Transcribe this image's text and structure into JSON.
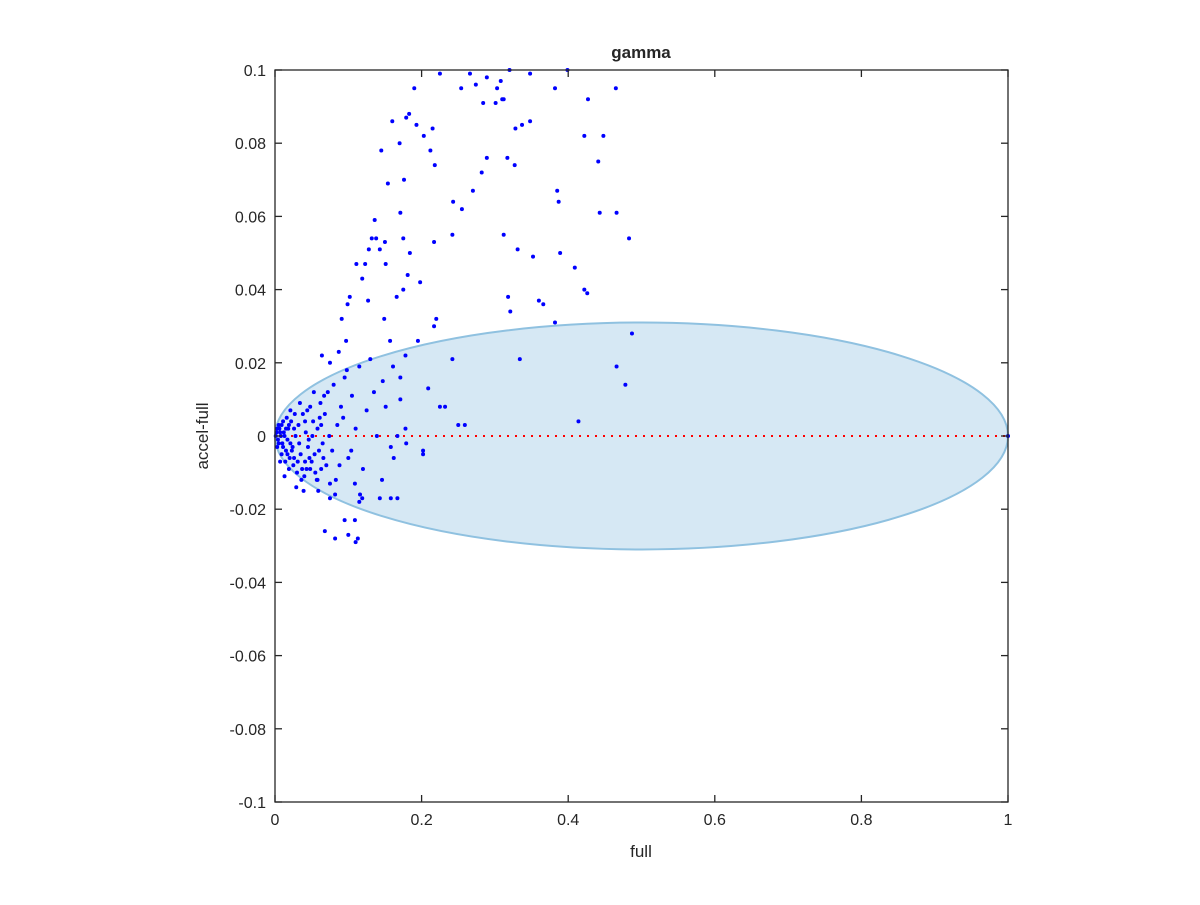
{
  "chart_data": {
    "type": "scatter",
    "title": "gamma",
    "xlabel": "full",
    "ylabel": "accel-full",
    "xlim": [
      0,
      1
    ],
    "ylim": [
      -0.1,
      0.1
    ],
    "xticks": [
      0,
      0.2,
      0.4,
      0.6,
      0.8,
      1
    ],
    "xtick_labels": [
      "0",
      "0.2",
      "0.4",
      "0.6",
      "0.8",
      "1"
    ],
    "yticks": [
      -0.1,
      -0.08,
      -0.06,
      -0.04,
      -0.02,
      0,
      0.02,
      0.04,
      0.06,
      0.08,
      0.1
    ],
    "ytick_labels": [
      "-0.1",
      "-0.08",
      "-0.06",
      "-0.04",
      "-0.02",
      "0",
      "0.02",
      "0.04",
      "0.06",
      "0.08",
      "0.1"
    ],
    "grid": false,
    "colors": {
      "points": "#0000ff",
      "zero_line": "#ff0000",
      "ellipse_fill": "#d6e8f4",
      "ellipse_edge": "#8fc1e0",
      "axis": "#262626"
    },
    "ellipse": {
      "center": [
        0.5,
        0
      ],
      "semi_axes": [
        0.5,
        0.031
      ]
    },
    "zero_line": {
      "y": 0,
      "x_range": [
        0,
        1
      ],
      "style": "dotted"
    },
    "points": [
      [
        0.225,
        0.099
      ],
      [
        0.266,
        0.099
      ],
      [
        0.289,
        0.098
      ],
      [
        0.32,
        0.1
      ],
      [
        0.348,
        0.099
      ],
      [
        0.399,
        0.1
      ],
      [
        0.31,
        0.092
      ],
      [
        0.254,
        0.095
      ],
      [
        0.274,
        0.096
      ],
      [
        0.308,
        0.097
      ],
      [
        0.303,
        0.095
      ],
      [
        0.284,
        0.091
      ],
      [
        0.301,
        0.091
      ],
      [
        0.312,
        0.092
      ],
      [
        0.382,
        0.095
      ],
      [
        0.19,
        0.095
      ],
      [
        0.427,
        0.092
      ],
      [
        0.465,
        0.095
      ],
      [
        0.183,
        0.088
      ],
      [
        0.16,
        0.086
      ],
      [
        0.145,
        0.078
      ],
      [
        0.212,
        0.078
      ],
      [
        0.203,
        0.082
      ],
      [
        0.215,
        0.084
      ],
      [
        0.154,
        0.069
      ],
      [
        0.17,
        0.08
      ],
      [
        0.179,
        0.087
      ],
      [
        0.193,
        0.085
      ],
      [
        0.218,
        0.074
      ],
      [
        0.328,
        0.084
      ],
      [
        0.337,
        0.085
      ],
      [
        0.348,
        0.086
      ],
      [
        0.289,
        0.076
      ],
      [
        0.282,
        0.072
      ],
      [
        0.317,
        0.076
      ],
      [
        0.327,
        0.074
      ],
      [
        0.176,
        0.07
      ],
      [
        0.422,
        0.082
      ],
      [
        0.448,
        0.082
      ],
      [
        0.441,
        0.075
      ],
      [
        0.466,
        0.061
      ],
      [
        0.443,
        0.061
      ],
      [
        0.483,
        0.054
      ],
      [
        0.385,
        0.067
      ],
      [
        0.387,
        0.064
      ],
      [
        0.389,
        0.05
      ],
      [
        0.409,
        0.046
      ],
      [
        0.422,
        0.04
      ],
      [
        0.426,
        0.039
      ],
      [
        0.312,
        0.055
      ],
      [
        0.352,
        0.049
      ],
      [
        0.331,
        0.051
      ],
      [
        0.138,
        0.054
      ],
      [
        0.128,
        0.051
      ],
      [
        0.15,
        0.053
      ],
      [
        0.171,
        0.061
      ],
      [
        0.175,
        0.054
      ],
      [
        0.243,
        0.064
      ],
      [
        0.255,
        0.062
      ],
      [
        0.27,
        0.067
      ],
      [
        0.242,
        0.055
      ],
      [
        0.217,
        0.053
      ],
      [
        0.184,
        0.05
      ],
      [
        0.111,
        0.047
      ],
      [
        0.123,
        0.047
      ],
      [
        0.132,
        0.054
      ],
      [
        0.136,
        0.059
      ],
      [
        0.143,
        0.051
      ],
      [
        0.151,
        0.047
      ],
      [
        0.166,
        0.038
      ],
      [
        0.181,
        0.044
      ],
      [
        0.198,
        0.042
      ],
      [
        0.22,
        0.032
      ],
      [
        0.217,
        0.03
      ],
      [
        0.195,
        0.026
      ],
      [
        0.175,
        0.04
      ],
      [
        0.318,
        0.038
      ],
      [
        0.36,
        0.037
      ],
      [
        0.366,
        0.036
      ],
      [
        0.382,
        0.031
      ],
      [
        0.334,
        0.021
      ],
      [
        0.209,
        0.013
      ],
      [
        0.478,
        0.014
      ],
      [
        0.487,
        0.028
      ],
      [
        0.466,
        0.019
      ],
      [
        0.414,
        0.004
      ],
      [
        0.321,
        0.034
      ],
      [
        0.102,
        0.038
      ],
      [
        0.091,
        0.032
      ],
      [
        0.099,
        0.036
      ],
      [
        0.097,
        0.026
      ],
      [
        0.087,
        0.023
      ],
      [
        0.075,
        0.02
      ],
      [
        0.064,
        0.022
      ],
      [
        0.119,
        0.043
      ],
      [
        0.127,
        0.037
      ],
      [
        0.149,
        0.032
      ],
      [
        0.157,
        0.026
      ],
      [
        0.178,
        0.022
      ],
      [
        0.161,
        0.019
      ],
      [
        0.171,
        0.016
      ],
      [
        0.147,
        0.015
      ],
      [
        0.135,
        0.012
      ],
      [
        0.151,
        0.008
      ],
      [
        0.171,
        0.01
      ],
      [
        0.178,
        0.002
      ],
      [
        0.242,
        0.021
      ],
      [
        0.225,
        0.008
      ],
      [
        0.232,
        0.008
      ],
      [
        0.25,
        0.003
      ],
      [
        0.259,
        0.003
      ],
      [
        0.202,
        -0.005
      ],
      [
        0.158,
        -0.003
      ],
      [
        0.202,
        -0.004
      ],
      [
        0.167,
        0.0
      ],
      [
        0.139,
        0.0
      ],
      [
        0.179,
        -0.002
      ],
      [
        0.162,
        -0.006
      ],
      [
        0.104,
        -0.004
      ],
      [
        0.146,
        -0.012
      ],
      [
        0.109,
        -0.013
      ],
      [
        0.167,
        -0.017
      ],
      [
        0.116,
        -0.016
      ],
      [
        0.075,
        -0.013
      ],
      [
        0.063,
        -0.009
      ],
      [
        0.075,
        -0.017
      ],
      [
        0.095,
        -0.023
      ],
      [
        0.109,
        -0.023
      ],
      [
        0.068,
        -0.026
      ],
      [
        0.082,
        -0.028
      ],
      [
        0.1,
        -0.027
      ],
      [
        0.119,
        -0.017
      ],
      [
        0.058,
        -0.012
      ],
      [
        0.048,
        -0.009
      ],
      [
        0.041,
        -0.007
      ],
      [
        0.11,
        -0.029
      ],
      [
        0.113,
        -0.028
      ],
      [
        0.115,
        -0.018
      ],
      [
        0.143,
        -0.017
      ],
      [
        0.158,
        -0.017
      ],
      [
        0.082,
        -0.016
      ],
      [
        1.0,
        0.0
      ],
      [
        0.002,
        0.001
      ],
      [
        0.004,
        -0.001
      ],
      [
        0.006,
        0.002
      ],
      [
        0.008,
        0.0
      ],
      [
        0.01,
        -0.002
      ],
      [
        0.012,
        0.001
      ],
      [
        0.005,
        0.003
      ],
      [
        0.003,
        -0.003
      ],
      [
        0.015,
        -0.004
      ],
      [
        0.018,
        0.002
      ],
      [
        0.02,
        -0.006
      ],
      [
        0.022,
        0.004
      ],
      [
        0.025,
        -0.008
      ],
      [
        0.028,
        0.0
      ],
      [
        0.03,
        -0.01
      ],
      [
        0.014,
        -0.007
      ],
      [
        0.016,
        0.005
      ],
      [
        0.011,
        0.004
      ],
      [
        0.009,
        -0.005
      ],
      [
        0.024,
        -0.003
      ],
      [
        0.032,
        0.003
      ],
      [
        0.035,
        -0.005
      ],
      [
        0.038,
        0.006
      ],
      [
        0.04,
        -0.011
      ],
      [
        0.042,
        0.001
      ],
      [
        0.045,
        -0.003
      ],
      [
        0.048,
        0.008
      ],
      [
        0.05,
        -0.007
      ],
      [
        0.052,
        0.004
      ],
      [
        0.055,
        -0.01
      ],
      [
        0.058,
        0.002
      ],
      [
        0.06,
        -0.004
      ],
      [
        0.062,
        0.009
      ],
      [
        0.065,
        -0.002
      ],
      [
        0.068,
        0.006
      ],
      [
        0.07,
        -0.008
      ],
      [
        0.019,
        -0.009
      ],
      [
        0.027,
        0.006
      ],
      [
        0.033,
        -0.002
      ],
      [
        0.036,
        -0.012
      ],
      [
        0.044,
        0.007
      ],
      [
        0.047,
        -0.006
      ],
      [
        0.053,
        0.012
      ],
      [
        0.057,
        -0.012
      ],
      [
        0.063,
        0.003
      ],
      [
        0.072,
        0.012
      ],
      [
        0.078,
        -0.004
      ],
      [
        0.08,
        0.014
      ],
      [
        0.085,
        0.003
      ],
      [
        0.088,
        -0.008
      ],
      [
        0.09,
        0.008
      ],
      [
        0.095,
        0.016
      ],
      [
        0.1,
        -0.006
      ],
      [
        0.105,
        0.011
      ],
      [
        0.11,
        0.002
      ],
      [
        0.115,
        0.019
      ],
      [
        0.12,
        -0.009
      ],
      [
        0.125,
        0.007
      ],
      [
        0.13,
        0.021
      ],
      [
        0.013,
        -0.011
      ],
      [
        0.021,
        0.007
      ],
      [
        0.029,
        -0.014
      ],
      [
        0.039,
        -0.015
      ],
      [
        0.007,
        -0.007
      ],
      [
        0.017,
        -0.001
      ],
      [
        0.026,
        0.002
      ],
      [
        0.034,
        0.009
      ],
      [
        0.043,
        -0.009
      ],
      [
        0.051,
        0.0
      ],
      [
        0.059,
        -0.015
      ],
      [
        0.067,
        0.011
      ],
      [
        0.074,
        0.0
      ],
      [
        0.083,
        -0.012
      ],
      [
        0.093,
        0.005
      ],
      [
        0.098,
        0.018
      ],
      [
        0.001,
        0.0
      ],
      [
        0.003,
        0.002
      ],
      [
        0.005,
        -0.002
      ],
      [
        0.007,
        0.001
      ],
      [
        0.009,
        0.003
      ],
      [
        0.011,
        -0.003
      ],
      [
        0.013,
        0.0
      ],
      [
        0.015,
        0.002
      ],
      [
        0.017,
        -0.005
      ],
      [
        0.019,
        0.003
      ],
      [
        0.021,
        -0.002
      ],
      [
        0.023,
        -0.004
      ],
      [
        0.026,
        -0.006
      ],
      [
        0.031,
        -0.007
      ],
      [
        0.037,
        -0.009
      ],
      [
        0.041,
        0.004
      ],
      [
        0.046,
        -0.001
      ],
      [
        0.054,
        -0.005
      ],
      [
        0.061,
        0.005
      ],
      [
        0.066,
        -0.006
      ]
    ]
  }
}
